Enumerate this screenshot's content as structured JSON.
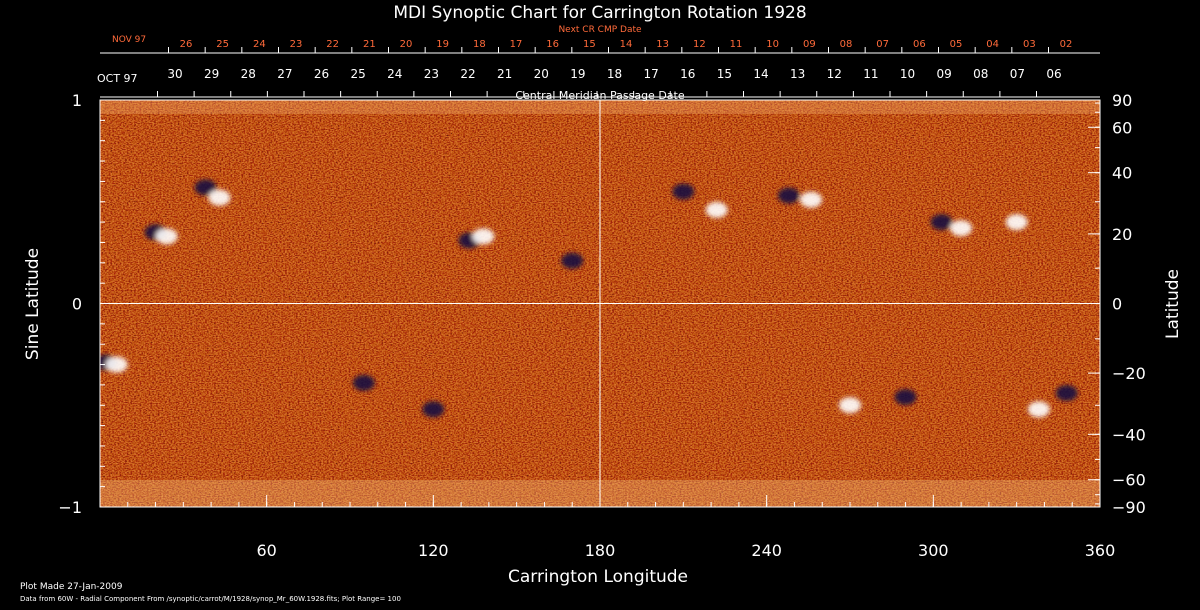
{
  "chart_data": {
    "type": "heatmap",
    "title": "MDI Synoptic Chart for Carrington Rotation 1928",
    "xlabel": "Carrington Longitude",
    "ylabel": "Sine Latitude",
    "ylabel_right": "Latitude",
    "xlim": [
      0,
      360
    ],
    "ylim": [
      -1,
      1
    ],
    "x_ticks": [
      60,
      120,
      180,
      240,
      300,
      360
    ],
    "y_ticks": [
      {
        "value": 1,
        "label": "1"
      },
      {
        "value": 0,
        "label": "0"
      },
      {
        "value": -1,
        "label": "−1"
      }
    ],
    "lat_ticks": [
      {
        "value": 90,
        "label": "90"
      },
      {
        "value": 60,
        "label": "60"
      },
      {
        "value": 40,
        "label": "40"
      },
      {
        "value": 20,
        "label": "20"
      },
      {
        "value": 0,
        "label": "0"
      },
      {
        "value": -20,
        "label": "−20"
      },
      {
        "value": -40,
        "label": "−40"
      },
      {
        "value": -60,
        "label": "−60"
      },
      {
        "value": -90,
        "label": "−90"
      }
    ],
    "cmp_axis_label": "Central Meridian Passage Date",
    "cmp_month_label": "OCT 97",
    "cmp_days": [
      "30",
      "29",
      "28",
      "27",
      "26",
      "25",
      "24",
      "23",
      "22",
      "21",
      "20",
      "19",
      "18",
      "17",
      "16",
      "15",
      "14",
      "13",
      "12",
      "11",
      "10",
      "09",
      "08",
      "07",
      "06"
    ],
    "next_cr_label": "Next CR CMP Date",
    "next_cr_month_label": "NOV 97",
    "next_cr_days": [
      "26",
      "25",
      "24",
      "23",
      "22",
      "21",
      "20",
      "19",
      "18",
      "17",
      "16",
      "15",
      "14",
      "13",
      "12",
      "11",
      "10",
      "09",
      "08",
      "07",
      "06",
      "05",
      "04",
      "03",
      "02"
    ],
    "colors": {
      "background": "#000000",
      "field_base": "#e8501a",
      "positive": "#ffffff",
      "negative": "#1a1240",
      "axis": "#ffffff",
      "next_cr": "#ff6a3a"
    },
    "active_regions": [
      {
        "lon": 20,
        "sinlat": 0.35,
        "polarity": "negative"
      },
      {
        "lon": 24,
        "sinlat": 0.33,
        "polarity": "positive"
      },
      {
        "lon": 38,
        "sinlat": 0.57,
        "polarity": "negative"
      },
      {
        "lon": 43,
        "sinlat": 0.52,
        "polarity": "positive"
      },
      {
        "lon": 133,
        "sinlat": 0.31,
        "polarity": "negative"
      },
      {
        "lon": 138,
        "sinlat": 0.33,
        "polarity": "positive"
      },
      {
        "lon": 170,
        "sinlat": 0.21,
        "polarity": "negative"
      },
      {
        "lon": 210,
        "sinlat": 0.55,
        "polarity": "negative"
      },
      {
        "lon": 222,
        "sinlat": 0.46,
        "polarity": "positive"
      },
      {
        "lon": 248,
        "sinlat": 0.53,
        "polarity": "negative"
      },
      {
        "lon": 256,
        "sinlat": 0.51,
        "polarity": "positive"
      },
      {
        "lon": 303,
        "sinlat": 0.4,
        "polarity": "negative"
      },
      {
        "lon": 310,
        "sinlat": 0.37,
        "polarity": "positive"
      },
      {
        "lon": 330,
        "sinlat": 0.4,
        "polarity": "positive"
      },
      {
        "lon": 2,
        "sinlat": -0.29,
        "polarity": "negative"
      },
      {
        "lon": 6,
        "sinlat": -0.3,
        "polarity": "positive"
      },
      {
        "lon": 95,
        "sinlat": -0.39,
        "polarity": "negative"
      },
      {
        "lon": 120,
        "sinlat": -0.52,
        "polarity": "negative"
      },
      {
        "lon": 270,
        "sinlat": -0.5,
        "polarity": "positive"
      },
      {
        "lon": 290,
        "sinlat": -0.46,
        "polarity": "negative"
      },
      {
        "lon": 338,
        "sinlat": -0.52,
        "polarity": "positive"
      },
      {
        "lon": 348,
        "sinlat": -0.44,
        "polarity": "negative"
      }
    ]
  },
  "footer": {
    "plot_made": "Plot Made 27-Jan-2009",
    "source": "Data from 60W - Radial Component From /synoptic/carrot/M/1928/synop_Mr_60W.1928.fits; Plot Range= 100"
  }
}
